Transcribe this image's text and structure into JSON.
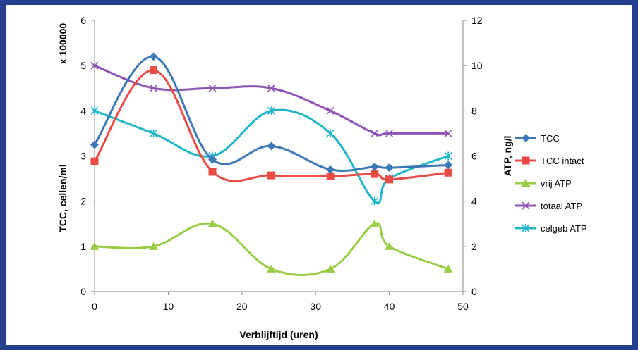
{
  "chart_data": {
    "type": "line",
    "smooth": true,
    "xlabel": "Verblijftijd (uren)",
    "ylabel_left": "TCC, cellen/ml",
    "ylabel_left_multiplier": "x 100000",
    "ylabel_right": "ATP, ng/l",
    "xlim": [
      0,
      50
    ],
    "xticks": [
      0,
      10,
      20,
      30,
      40,
      50
    ],
    "ylim_left": [
      0,
      6
    ],
    "yticks_left": [
      0,
      1,
      2,
      3,
      4,
      5,
      6
    ],
    "ylim_right": [
      0,
      12
    ],
    "yticks_right": [
      0,
      2,
      4,
      6,
      8,
      10,
      12
    ],
    "grid": false,
    "legend_position": "right",
    "series": [
      {
        "name": "TCC",
        "axis": "left",
        "color": "#3b78b5",
        "marker": "diamond",
        "x": [
          0,
          8,
          16,
          24,
          32,
          38,
          40,
          48
        ],
        "y": [
          3.25,
          5.2,
          2.92,
          3.22,
          2.7,
          2.76,
          2.74,
          2.8
        ]
      },
      {
        "name": "TCC intact",
        "axis": "left",
        "color": "#e94b45",
        "marker": "square",
        "x": [
          0,
          8,
          16,
          24,
          32,
          38,
          40,
          48
        ],
        "y": [
          2.88,
          4.9,
          2.65,
          2.57,
          2.55,
          2.6,
          2.48,
          2.63
        ]
      },
      {
        "name": "vrij ATP",
        "axis": "right",
        "color": "#99cc44",
        "marker": "triangle",
        "x": [
          0,
          8,
          16,
          24,
          32,
          38,
          40,
          48
        ],
        "y": [
          2,
          2,
          3,
          1,
          1,
          3,
          2,
          1
        ]
      },
      {
        "name": "totaal ATP",
        "axis": "right",
        "color": "#8f52b5",
        "marker": "x",
        "x": [
          0,
          8,
          16,
          24,
          32,
          38,
          40,
          48
        ],
        "y": [
          10,
          9,
          9,
          9,
          8,
          7,
          7,
          7
        ]
      },
      {
        "name": "celgeb ATP",
        "axis": "right",
        "color": "#1fb5c9",
        "marker": "star",
        "x": [
          0,
          8,
          16,
          24,
          32,
          38,
          40,
          48
        ],
        "y": [
          8,
          7,
          6,
          8,
          7,
          4,
          5,
          6
        ]
      }
    ]
  }
}
